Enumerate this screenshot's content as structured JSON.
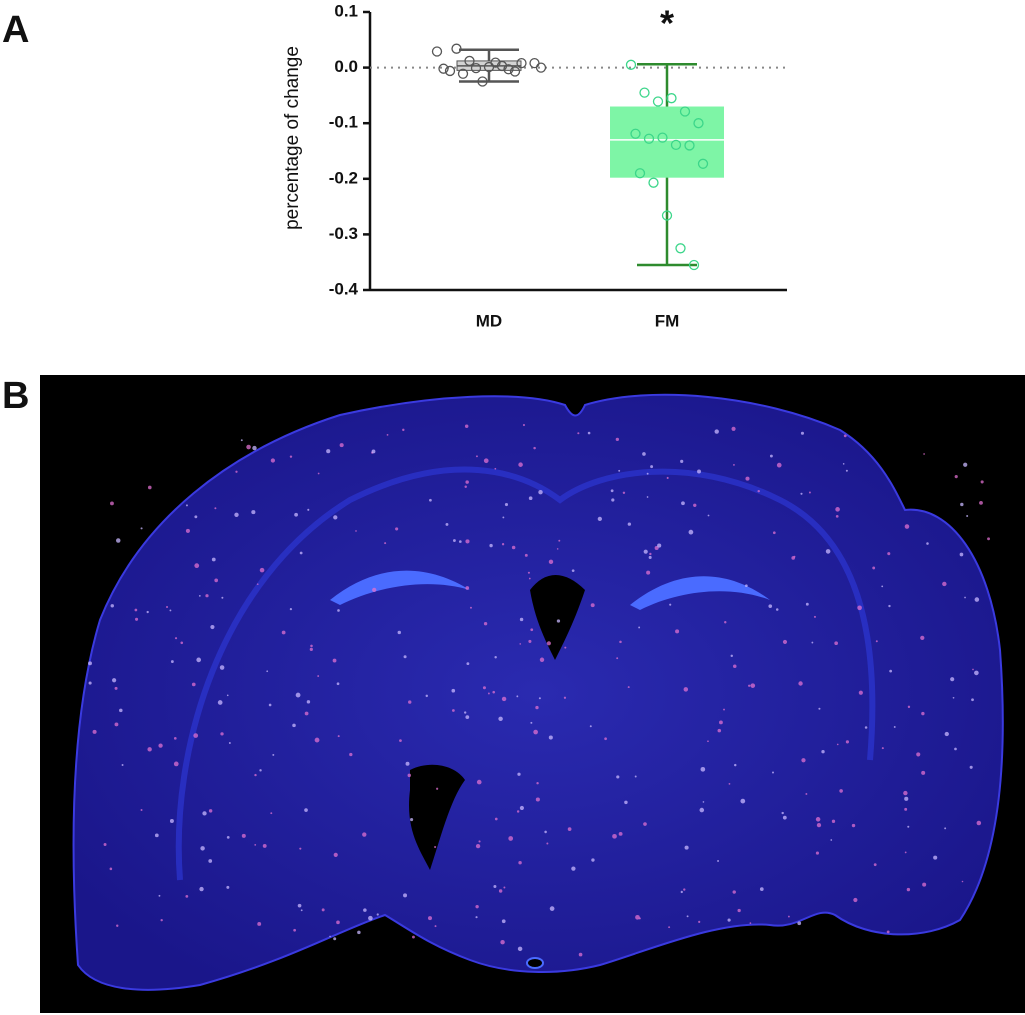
{
  "panel_labels": [
    "A",
    "B"
  ],
  "chart_data": {
    "type": "box",
    "ylabel": "percentage of change",
    "categories": [
      "MD",
      "FM"
    ],
    "ylim": [
      -0.4,
      0.1
    ],
    "yticks": [
      0.1,
      {
        "value": 0,
        "label": "0.0"
      },
      -0.1,
      -0.2,
      -0.3,
      -0.4
    ],
    "reference_line": 0,
    "boxes": [
      {
        "color": "#555555",
        "box_color": "#d3d3d3",
        "min": -0.025,
        "q1": -0.005,
        "median": 0.003,
        "q3": 0.012,
        "max": 0.032,
        "points": [
          0.029,
          0.034,
          -0.001,
          0.009,
          -0.007,
          0.008,
          -0.002,
          -0.011,
          -0.025,
          0.003,
          0.008,
          0.0,
          -0.006,
          0.012,
          0.001,
          -0.003
        ]
      },
      {
        "color": "#2e8b2e",
        "box_color": "#7ef5a6",
        "point_color": "#3cd68a",
        "min": -0.355,
        "q1": -0.198,
        "median": -0.13,
        "q3": -0.07,
        "max": 0.006,
        "points": [
          0.005,
          -0.045,
          -0.061,
          -0.055,
          -0.079,
          -0.1,
          -0.119,
          -0.128,
          -0.126,
          -0.139,
          -0.14,
          -0.173,
          -0.19,
          -0.207,
          -0.266,
          -0.325,
          -0.355
        ]
      }
    ],
    "annotations": [
      {
        "text": "*",
        "category": 1
      }
    ]
  }
}
